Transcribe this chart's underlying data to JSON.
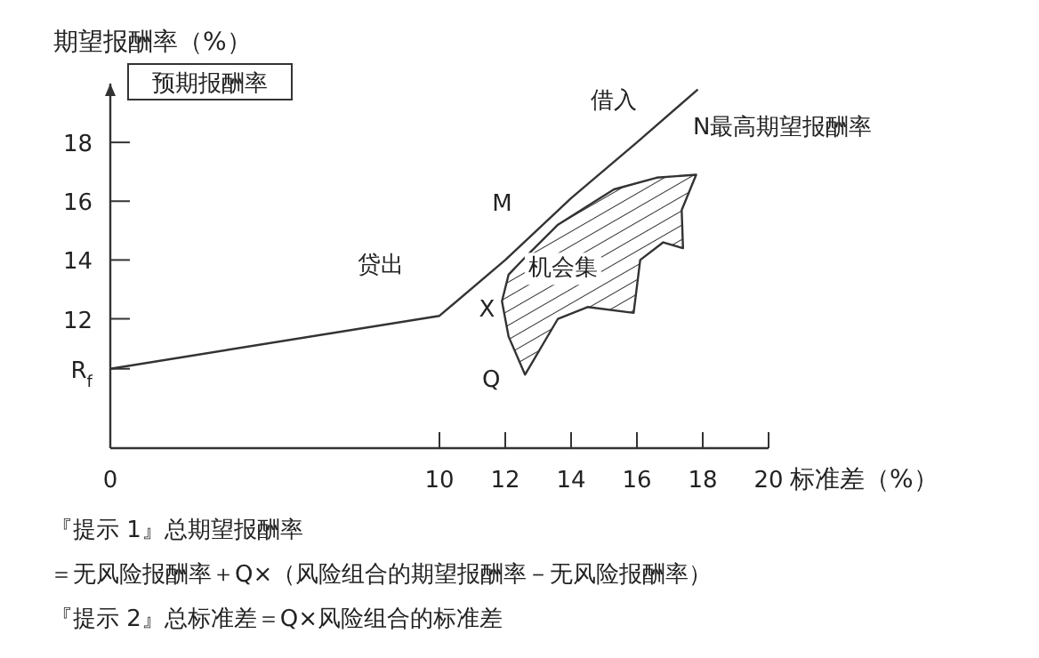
{
  "chart_data": {
    "type": "line",
    "ylabel": "期望报酬率（%）",
    "xlabel": "标准差（%）",
    "xlim": [
      0,
      20
    ],
    "xticks": [
      0,
      10,
      12,
      14,
      16,
      18,
      20
    ],
    "ylim": [
      7.6,
      20
    ],
    "yticks": [
      {
        "value": 10.3,
        "label": "R$_{f}$"
      },
      12,
      14,
      16,
      18
    ],
    "series": [
      {
        "color": "#333333",
        "x": [
          0,
          10,
          12,
          14,
          16,
          17.85
        ],
        "values": [
          10.3,
          12.1,
          14,
          16.1,
          18,
          19.8
        ]
      },
      {
        "type": "area",
        "color": "#333333",
        "x": [
          12.6,
          12.1,
          11.9,
          12.1,
          12.7,
          13.6,
          15.3,
          16.6,
          17.8,
          17.36,
          17.4,
          16.8,
          16.1,
          15.9,
          14.5,
          13.6,
          12.6
        ],
        "values": [
          10.1,
          11.4,
          12.6,
          13.5,
          14.2,
          15.2,
          16.4,
          16.8,
          16.9,
          15.7,
          14.4,
          14.6,
          14,
          12.2,
          12.4,
          12,
          10.1
        ]
      }
    ],
    "annotations": [
      "预期报酬率",
      "借入",
      "贷出",
      "M",
      "X",
      "Q",
      "机会集",
      "N最高期望报酬率",
      "『提示 1』总期望报酬率",
      "＝无风险报酬率＋Q×（风险组合的期望报酬率－无风险报酬率）",
      "『提示 2』总标准差＝Q×风险组合的标准差"
    ]
  }
}
